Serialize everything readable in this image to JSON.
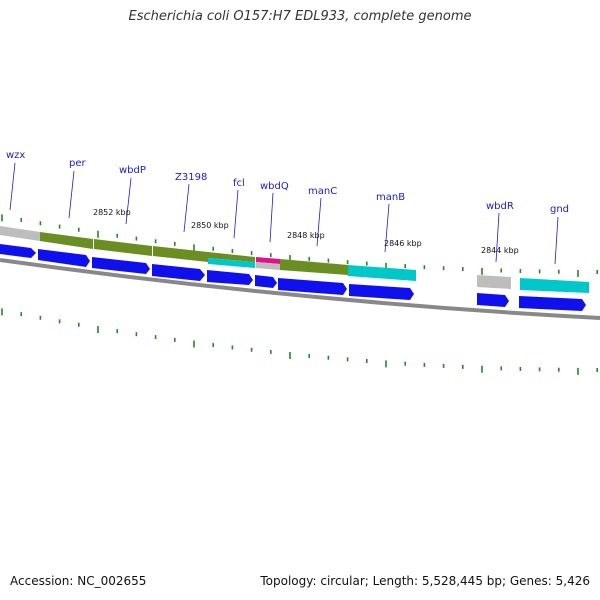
{
  "title": "Escherichia coli O157:H7 EDL933, complete genome",
  "footer": {
    "accession": "Accession: NC_002655",
    "summary": "Topology: circular; Length: 5,528,445 bp; Genes: 5,426"
  },
  "colors": {
    "cds_forward": "#1010ee",
    "cog_green": "#6b8e23",
    "cog_cyan": "#00c8c8",
    "cog_magenta": "#e0108a",
    "cog_grey": "#bdbdbd",
    "tick": "#228b22",
    "backbone": "#888888",
    "label": "#1a1ad6"
  },
  "genes": [
    {
      "name": "wzx"
    },
    {
      "name": "per"
    },
    {
      "name": "wbdP"
    },
    {
      "name": "Z3198"
    },
    {
      "name": "fcl"
    },
    {
      "name": "wbdQ"
    },
    {
      "name": "manC"
    },
    {
      "name": "manB"
    },
    {
      "name": "wbdR"
    },
    {
      "name": "gnd"
    }
  ],
  "kbp_labels": [
    "2852 kbp",
    "2850 kbp",
    "2848 kbp",
    "2846 kbp",
    "2844 kbp"
  ]
}
